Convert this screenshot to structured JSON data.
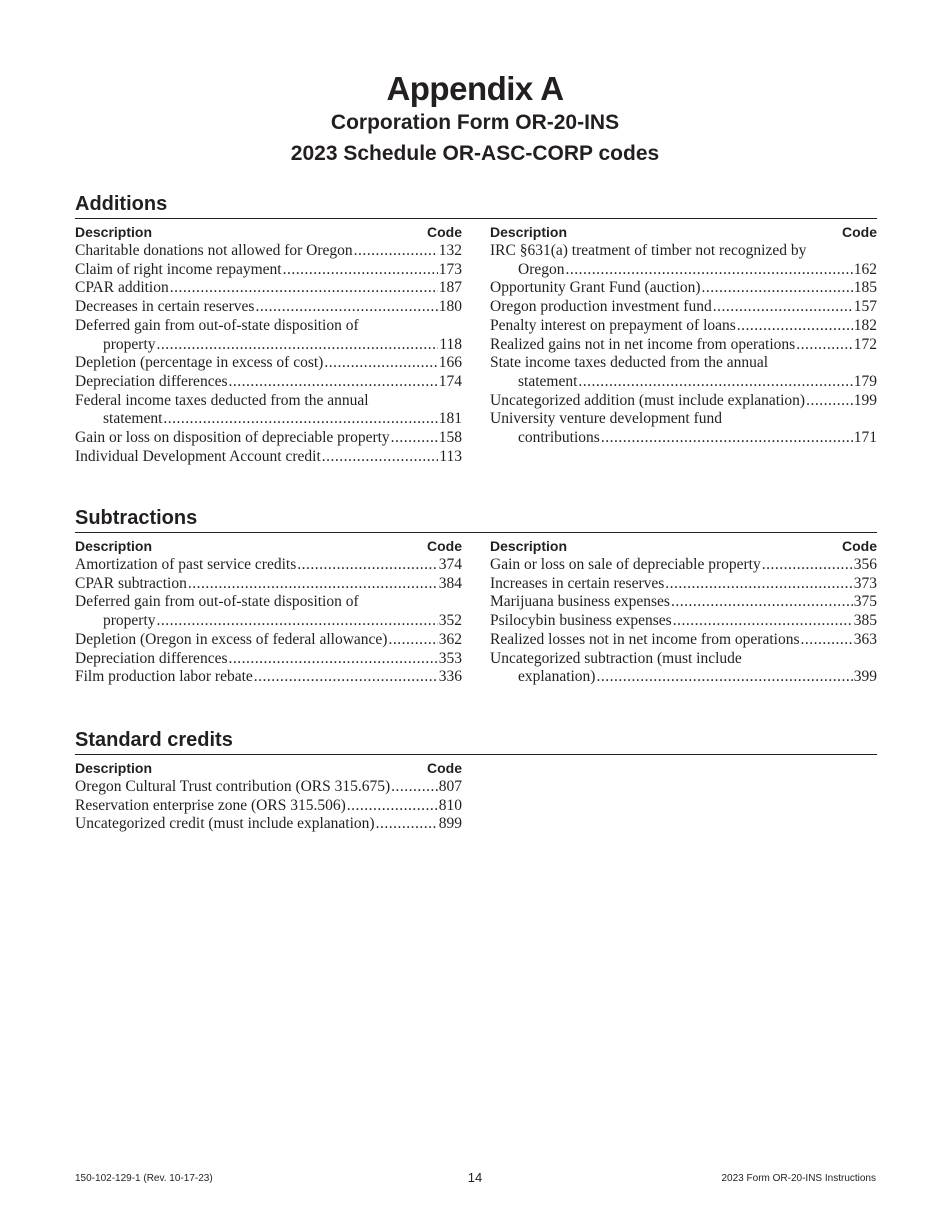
{
  "header": {
    "title": "Appendix A",
    "subtitle": "Corporation Form OR-20-INS",
    "subtitle2": "2023 Schedule OR-ASC-CORP codes"
  },
  "columns": {
    "description": "Description",
    "code": "Code"
  },
  "sections": [
    {
      "heading": "Additions",
      "left": [
        {
          "text": "Charitable donations not allowed for Oregon",
          "code": "132"
        },
        {
          "text": "Claim of right income repayment",
          "code": "173"
        },
        {
          "text": "CPAR addition",
          "code": "187"
        },
        {
          "text": "Decreases in certain reserves",
          "code": "180"
        },
        {
          "text": "Deferred gain from out-of-state disposition of",
          "cont": "property",
          "code": "118"
        },
        {
          "text": "Depletion (percentage in excess of cost)",
          "code": "166"
        },
        {
          "text": "Depreciation differences",
          "code": "174"
        },
        {
          "text": "Federal income taxes deducted from the annual",
          "cont": "statement",
          "code": "181"
        },
        {
          "text": "Gain or loss on disposition of depreciable property",
          "code": "158"
        },
        {
          "text": "Individual Development Account credit",
          "code": "113"
        }
      ],
      "right": [
        {
          "text": "IRC §631(a) treatment of timber not recognized by",
          "cont": "Oregon",
          "code": "162"
        },
        {
          "text": "Opportunity Grant Fund (auction)",
          "code": "185"
        },
        {
          "text": "Oregon production investment fund",
          "code": "157"
        },
        {
          "text": "Penalty interest on prepayment of loans",
          "code": "182"
        },
        {
          "text": "Realized gains not in net income from operations",
          "code": "172"
        },
        {
          "text": "State income taxes deducted from the annual",
          "cont": "statement",
          "code": "179"
        },
        {
          "text": "Uncategorized addition (must include explanation)",
          "code": "199"
        },
        {
          "text": "University venture development fund",
          "cont": "contributions",
          "code": "171"
        }
      ]
    },
    {
      "heading": "Subtractions",
      "left": [
        {
          "text": "Amortization of past service credits",
          "code": "374"
        },
        {
          "text": "CPAR subtraction",
          "code": "384"
        },
        {
          "text": "Deferred gain from out-of-state disposition of",
          "cont": "property",
          "code": "352"
        },
        {
          "text": "Depletion (Oregon in excess of federal allowance)",
          "code": "362"
        },
        {
          "text": "Depreciation differences",
          "code": "353"
        },
        {
          "text": "Film production labor rebate",
          "code": "336"
        }
      ],
      "right": [
        {
          "text": "Gain or loss on sale of depreciable property",
          "code": "356"
        },
        {
          "text": "Increases in certain reserves",
          "code": "373"
        },
        {
          "text": "Marijuana business expenses",
          "code": "375"
        },
        {
          "text": "Psilocybin business expenses",
          "code": "385"
        },
        {
          "text": "Realized losses not in net income from operations",
          "code": "363"
        },
        {
          "text": "Uncategorized subtraction (must include",
          "cont": "explanation)",
          "code": "399"
        }
      ]
    },
    {
      "heading": "Standard credits",
      "left": [
        {
          "text": "Oregon Cultural Trust contribution (ORS 315.675)",
          "code": "807"
        },
        {
          "text": "Reservation enterprise zone (ORS 315.506)",
          "code": "810"
        },
        {
          "text": "Uncategorized credit (must include explanation)",
          "code": "899"
        }
      ],
      "right": []
    }
  ],
  "footer": {
    "form_number": "150-102-129-1 (Rev. 10-17-23)",
    "page": "14",
    "doc_title": "2023 Form OR-20-INS Instructions"
  }
}
